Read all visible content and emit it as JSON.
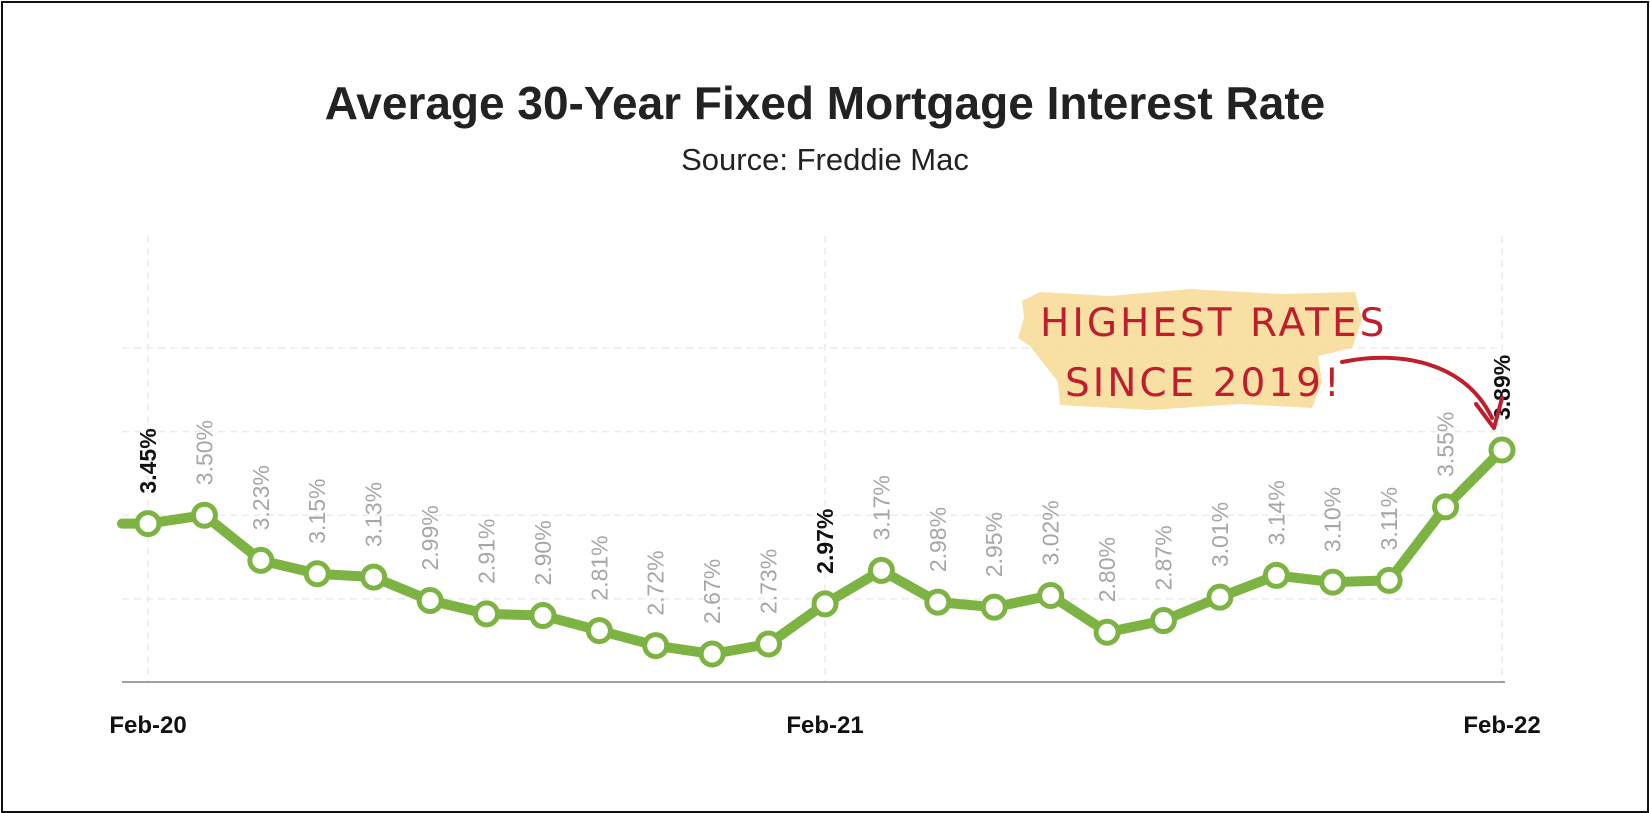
{
  "colors": {
    "line": "#7cb342",
    "marker_fill": "#ffffff",
    "highlight_label": "#111111",
    "normal_label": "#a6a6a6",
    "annotation_text": "#bf1e2d",
    "annotation_highlight": "#f7dc9a"
  },
  "chart_data": {
    "type": "line",
    "title": "Average 30-Year Fixed Mortgage Interest Rate",
    "subtitle": "Source: Freddie Mac",
    "xlabel": "",
    "ylabel": "",
    "tick_labels": [
      {
        "label": "Feb-20",
        "index": 0
      },
      {
        "label": "Feb-21",
        "index": 12
      },
      {
        "label": "Feb-22",
        "index": 24
      }
    ],
    "values": [
      3.45,
      3.5,
      3.23,
      3.15,
      3.13,
      2.99,
      2.91,
      2.9,
      2.81,
      2.72,
      2.67,
      2.73,
      2.97,
      3.17,
      2.98,
      2.95,
      3.02,
      2.8,
      2.87,
      3.01,
      3.14,
      3.1,
      3.11,
      3.55,
      3.89
    ],
    "labels": [
      "3.45%",
      "3.50%",
      "3.23%",
      "3.15%",
      "3.13%",
      "2.99%",
      "2.91%",
      "2.90%",
      "2.81%",
      "2.72%",
      "2.67%",
      "2.73%",
      "2.97%",
      "3.17%",
      "2.98%",
      "2.95%",
      "3.02%",
      "2.80%",
      "2.87%",
      "3.01%",
      "3.14%",
      "3.10%",
      "3.11%",
      "3.55%",
      "3.89%"
    ],
    "highlighted_indices": [
      0,
      12,
      24
    ],
    "grid": true,
    "legend": "none",
    "annotation": {
      "lines": [
        "HIGHEST RATES",
        "SINCE 2019!"
      ],
      "points_to_index": 24
    }
  }
}
